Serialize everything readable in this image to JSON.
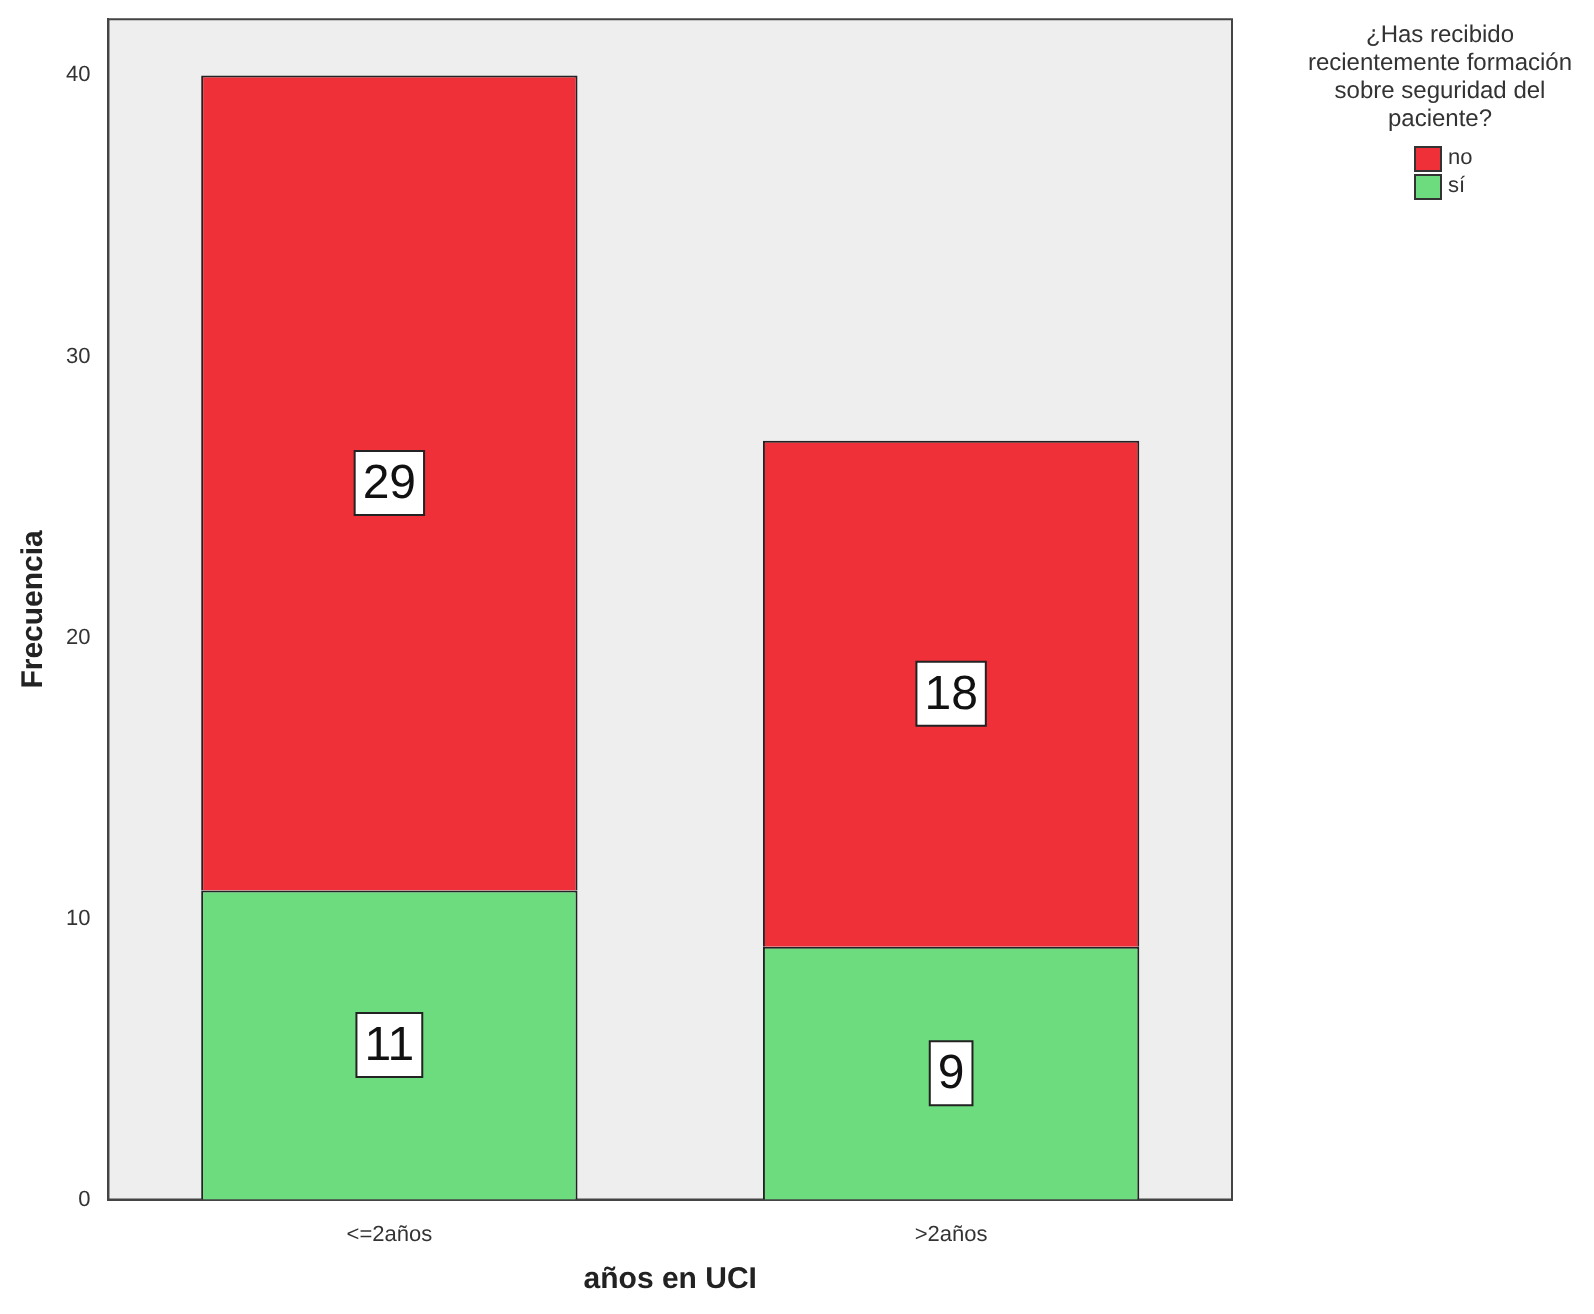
{
  "chart_data": {
    "type": "bar",
    "stacked": true,
    "xlabel": "años en UCI",
    "ylabel": "Frecuencia",
    "legend_title": "¿Has recibido recientemente formación sobre seguridad del paciente?",
    "legend": "top right",
    "categories": [
      "<=2años",
      ">2años"
    ],
    "series": [
      {
        "name": "sí",
        "color": "#6ddc7f",
        "values": [
          11,
          9
        ]
      },
      {
        "name": "no",
        "color": "#ef3038",
        "values": [
          29,
          18
        ]
      }
    ],
    "ylim": [
      0,
      42
    ],
    "yticks": [
      0,
      10,
      20,
      30,
      40
    ],
    "grid": false,
    "data_labels": true
  }
}
